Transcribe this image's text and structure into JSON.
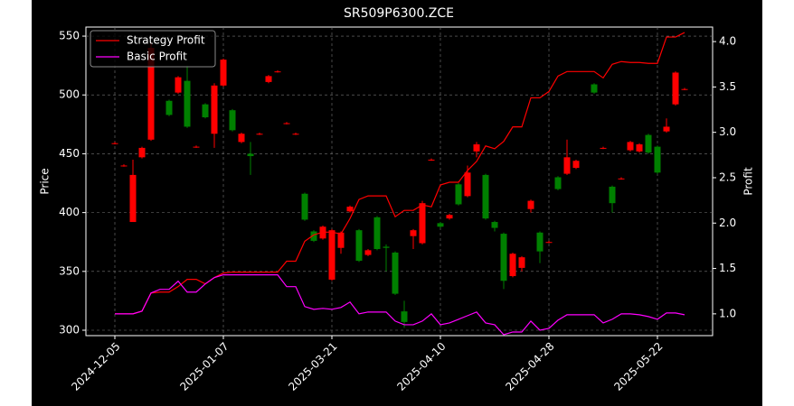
{
  "chart_data": {
    "type": "candlestick",
    "title": "SR509P6300.ZCE",
    "y_label": "Price",
    "y2_label": "Profit",
    "categories": [
      "2024-12-05",
      null,
      null,
      null,
      null,
      null,
      null,
      null,
      null,
      null,
      null,
      null,
      "2025-01-07",
      null,
      null,
      null,
      null,
      null,
      null,
      null,
      null,
      null,
      null,
      null,
      "2025-03-21",
      null,
      null,
      null,
      null,
      null,
      null,
      null,
      null,
      null,
      null,
      null,
      "2025-04-10",
      null,
      null,
      null,
      null,
      null,
      null,
      null,
      null,
      null,
      null,
      null,
      "2025-04-28",
      null,
      null,
      null,
      null,
      null,
      null,
      null,
      null,
      null,
      null,
      null,
      "2025-05-22",
      null,
      null,
      null
    ],
    "open": [
      459,
      440,
      392,
      447,
      462,
      null,
      495,
      502,
      512,
      456,
      492,
      467,
      508,
      487,
      460,
      450,
      467,
      511,
      520,
      476,
      467,
      416,
      384,
      378,
      343,
      370,
      401,
      385,
      364,
      396,
      371,
      366,
      316,
      380,
      374,
      445,
      391,
      395,
      424,
      414,
      452,
      432,
      392,
      382,
      346,
      353,
      403,
      383,
      375,
      430,
      433,
      438,
      null,
      509,
      455,
      422,
      429,
      453,
      452,
      466,
      456,
      469,
      492,
      505
    ],
    "high": [
      460,
      441,
      445,
      456,
      545,
      null,
      496,
      516,
      525,
      457,
      493,
      510,
      531,
      488,
      468,
      460,
      468,
      517,
      521,
      477,
      468,
      417,
      385,
      389,
      386,
      384,
      406,
      386,
      369,
      397,
      373,
      367,
      325,
      386,
      410,
      446,
      392,
      399,
      425,
      440,
      460,
      433,
      393,
      383,
      366,
      363,
      411,
      384,
      376,
      431,
      462,
      445,
      null,
      510,
      456,
      423,
      430,
      461,
      459,
      467,
      457,
      480,
      520,
      506
    ],
    "low": [
      458,
      439,
      392,
      446,
      461,
      null,
      482,
      501,
      472,
      455,
      480,
      455,
      507,
      469,
      459,
      432,
      466,
      510,
      519,
      475,
      466,
      393,
      375,
      377,
      342,
      365,
      400,
      358,
      363,
      368,
      350,
      330,
      302,
      369,
      373,
      444,
      387,
      394,
      406,
      413,
      447,
      394,
      384,
      335,
      345,
      350,
      400,
      357,
      374,
      419,
      432,
      437,
      null,
      501,
      454,
      400,
      428,
      452,
      451,
      450,
      433,
      468,
      491,
      504
    ],
    "close": [
      459,
      440,
      432,
      455,
      540,
      null,
      483,
      515,
      473,
      456,
      481,
      508,
      530,
      470,
      467,
      448,
      467,
      516,
      520,
      476,
      467,
      394,
      376,
      388,
      385,
      383,
      405,
      359,
      368,
      369,
      370,
      331,
      307,
      385,
      408,
      445,
      388,
      398,
      407,
      434,
      458,
      395,
      387,
      342,
      365,
      362,
      410,
      367,
      375,
      420,
      447,
      444,
      null,
      502,
      455,
      408,
      429,
      460,
      458,
      451,
      434,
      473,
      519,
      505
    ],
    "up_color": "#ff0000",
    "down_color": "#008000",
    "series": [
      {
        "name": "Strategy Profit",
        "color": "#ff0000",
        "axis": "y2",
        "values": [
          1.0,
          1.0,
          1.0,
          1.03,
          1.23,
          1.24,
          1.24,
          1.3,
          1.38,
          1.38,
          1.33,
          1.4,
          1.45,
          1.46,
          1.46,
          1.46,
          1.46,
          1.46,
          1.46,
          1.58,
          1.58,
          1.8,
          1.87,
          1.9,
          1.9,
          1.88,
          2.05,
          2.26,
          2.3,
          2.3,
          2.3,
          2.07,
          2.14,
          2.14,
          2.2,
          2.18,
          2.42,
          2.45,
          2.45,
          2.58,
          2.68,
          2.85,
          2.82,
          2.9,
          3.06,
          3.06,
          3.38,
          3.38,
          3.45,
          3.62,
          3.67,
          3.67,
          3.67,
          3.67,
          3.6,
          3.75,
          3.78,
          3.77,
          3.77,
          3.76,
          3.76,
          4.05,
          4.05,
          4.1
        ]
      },
      {
        "name": "Basic Profit",
        "color": "#ff00ff",
        "axis": "y2",
        "values": [
          1.0,
          1.0,
          1.0,
          1.03,
          1.23,
          1.27,
          1.27,
          1.36,
          1.24,
          1.24,
          1.33,
          1.4,
          1.43,
          1.43,
          1.43,
          1.43,
          1.43,
          1.43,
          1.43,
          1.3,
          1.3,
          1.08,
          1.05,
          1.06,
          1.05,
          1.07,
          1.13,
          1.0,
          1.02,
          1.02,
          1.02,
          0.92,
          0.88,
          0.88,
          0.92,
          1.0,
          0.88,
          0.9,
          0.94,
          0.98,
          1.02,
          0.9,
          0.88,
          0.77,
          0.8,
          0.8,
          0.92,
          0.82,
          0.84,
          0.93,
          0.99,
          0.99,
          0.99,
          0.99,
          0.9,
          0.94,
          1.0,
          1.0,
          0.99,
          0.97,
          0.94,
          1.01,
          1.01,
          0.99
        ]
      }
    ],
    "ylim": [
      295.4,
      557.7
    ],
    "yticks": [
      300,
      350,
      400,
      450,
      500,
      550
    ],
    "y2lim": [
      0.76,
      4.16
    ],
    "y2ticks": [
      {
        "value": 1,
        "label": "1.0"
      },
      1.5,
      {
        "value": 2,
        "label": "2.0"
      },
      2.5,
      {
        "value": 3,
        "label": "3.0"
      },
      3.5,
      {
        "value": 4,
        "label": "4.0"
      }
    ],
    "grid": true,
    "legend": "upper left"
  }
}
